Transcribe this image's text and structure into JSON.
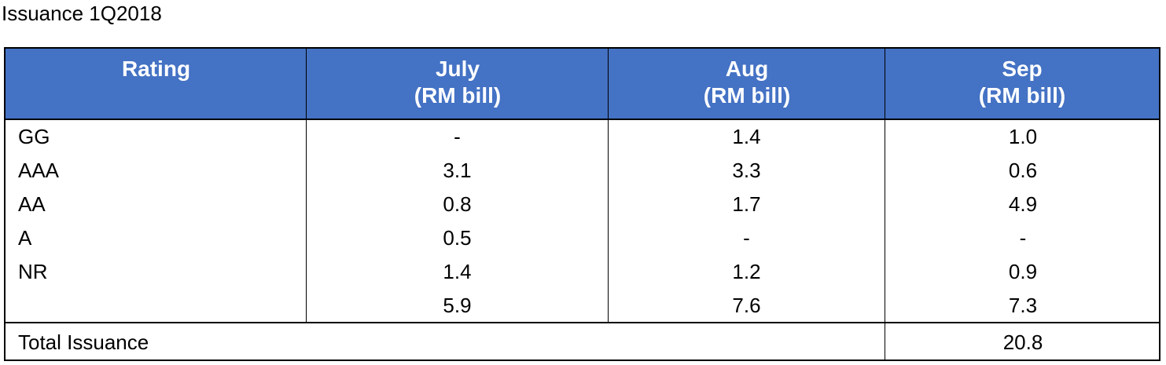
{
  "title": "Issuance 1Q2018",
  "columns": [
    {
      "line1": "Rating",
      "line2": ""
    },
    {
      "line1": "July",
      "line2": "(RM bill)"
    },
    {
      "line1": "Aug",
      "line2": "(RM bill)"
    },
    {
      "line1": "Sep",
      "line2": "(RM bill)"
    }
  ],
  "rows": [
    {
      "rating": "GG",
      "july": "-",
      "aug": "1.4",
      "sep": "1.0"
    },
    {
      "rating": "AAA",
      "july": "3.1",
      "aug": "3.3",
      "sep": "0.6"
    },
    {
      "rating": "AA",
      "july": "0.8",
      "aug": "1.7",
      "sep": "4.9"
    },
    {
      "rating": "A",
      "july": "0.5",
      "aug": "-",
      "sep": "-"
    },
    {
      "rating": "NR",
      "july": "1.4",
      "aug": "1.2",
      "sep": "0.9"
    },
    {
      "rating": "",
      "july": "5.9",
      "aug": "7.6",
      "sep": "7.3"
    }
  ],
  "total": {
    "label": "Total Issuance",
    "value": "20.8"
  },
  "colors": {
    "header_bg": "#4472c4",
    "header_text": "#ffffff",
    "border": "#000000"
  }
}
